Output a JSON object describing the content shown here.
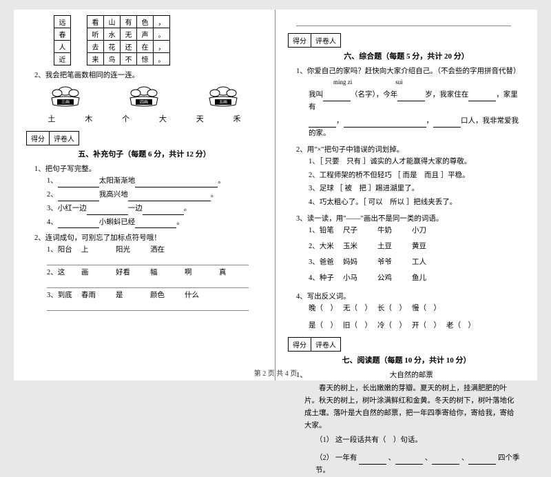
{
  "grid": {
    "rows": [
      [
        "远",
        "",
        "看",
        "山",
        "有",
        "色",
        "，"
      ],
      [
        "春",
        "",
        "听",
        "水",
        "无",
        "声",
        "。"
      ],
      [
        "人",
        "",
        "去",
        "花",
        "还",
        "在",
        "，"
      ],
      [
        "近",
        "",
        "来",
        "鸟",
        "不",
        "惊",
        "。"
      ]
    ]
  },
  "q2_left": "2、我会把笔画数相同的连一连。",
  "flower_labels": [
    "三画",
    "四画",
    "五画"
  ],
  "chars": [
    "土",
    "木",
    "个",
    "大",
    "天",
    "禾"
  ],
  "score_labels": {
    "score": "得分",
    "grader": "评卷人"
  },
  "section5_title": "五、补充句子（每题 6 分，共计 12 分）",
  "s5_q1": "1、把句子写完整。",
  "s5_q1_items": [
    {
      "pre": "1、",
      "mid": "太阳渐渐地",
      "post": "。"
    },
    {
      "pre": "2、",
      "mid": "我高兴地",
      "post": "。"
    },
    {
      "pre": "3、小红一边",
      "mid2": "一边",
      "post": "。"
    },
    {
      "pre": "4、",
      "mid": "小蝌蚪已经",
      "post": "。"
    }
  ],
  "s5_q2": "2、连词成句，可别忘了加标点符号哦！",
  "s5_q2_items": [
    [
      "1、阳台",
      "上",
      "阳光",
      "洒在"
    ],
    [
      "2、这",
      "画",
      "好看",
      "幅",
      "啊",
      "真"
    ],
    [
      "3、到底",
      "春雨",
      "是",
      "颜色",
      "什么"
    ]
  ],
  "section6_title": "六、综合题（每题 5 分，共计 20 分）",
  "s6_q1": "1、你爱自己的家吗？赶快向大家介绍自己。（不会些的字用拼音代替）",
  "s6_q1_pinyin1": "míng zi",
  "s6_q1_pinyin2": "suì",
  "s6_q1_line1a": "我叫",
  "s6_q1_line1b": "（名字），今年",
  "s6_q1_line1c": "岁，我家住在",
  "s6_q1_line1d": "，家里有",
  "s6_q1_line2": "口人，我非常爱我的家。",
  "s6_q2": "2、用\"×\"把句子中错误的词划掉。",
  "s6_q2_items": [
    "1、［ 只要　只有 ］诚实的人才能赢得大家的尊敬。",
    "2、工程师架的桥不但轻巧 ［ 而是　而且 ］平稳。",
    "3、足球 ［ 被　把 ］踢进湖里了。",
    "4、巧太粗心了。［ 可以　所以 ］把线夹丢了。"
  ],
  "s6_q3": "3、读一读，用\"——\"画出不是同一类的词语。",
  "s6_q3_rows": [
    [
      "1、铅笔",
      "尺子",
      "牛奶",
      "小刀"
    ],
    [
      "2、大米",
      "玉米",
      "土豆",
      "黄豆"
    ],
    [
      "3、爸爸",
      "妈妈",
      "爷爷",
      "工人"
    ],
    [
      "4、种子",
      "小马",
      "公鸡",
      "鱼儿"
    ]
  ],
  "s6_q4": "4、写出反义词。",
  "s6_q4_rows": [
    [
      "晚（　）",
      "无（　）",
      "长（　）",
      "慢（　）"
    ],
    [
      "是（　）",
      "旧（　）",
      "冷（　）",
      "开（　）",
      "老（　）"
    ]
  ],
  "section7_title": "七、阅读题（每题 10 分，共计 10 分）",
  "s7_q1": "1、",
  "s7_title": "大自然的邮票",
  "s7_para": "春天的树上，长出嫩嫩的芽瓣。夏天的树上，挂满肥肥的叶片。秋天的树上，树叶涂满鲜红和金黄。冬天的树下，树叶落地化成土壤。落叶是大自然的邮票，把一年四季寄给你，寄给我，寄给大家。",
  "s7_sub1": "（1）  这一段话共有（　）句话。",
  "s7_sub2_a": "（2）  一年有 ",
  "s7_sub2_b": " 、",
  "s7_sub2_c": " 、",
  "s7_sub2_d": " 、",
  "s7_sub2_e": " 四个季节。",
  "footer": "第 2 页  共 4 页"
}
